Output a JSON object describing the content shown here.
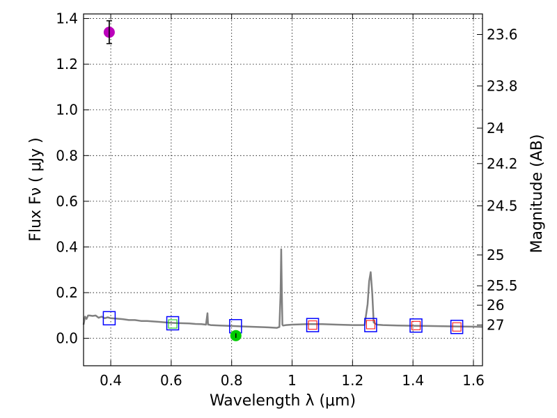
{
  "chart_data": {
    "type": "scatter",
    "title": "",
    "xlabel": "Wavelength  λ (μm)",
    "ylabel": "Flux  Fν  ( μJy )",
    "ylabel_right": "Magnitude (AB)",
    "xlim": [
      0.31,
      1.63
    ],
    "ylim": [
      -0.12,
      1.42
    ],
    "grid": true,
    "x_ticks": [
      0.4,
      0.6,
      0.8,
      1.0,
      1.2,
      1.4,
      1.6
    ],
    "x_tick_labels": [
      "0.4",
      "0.6",
      "0.8",
      "1",
      "1.2",
      "1.4",
      "1.6"
    ],
    "y_ticks": [
      0.0,
      0.2,
      0.4,
      0.6,
      0.8,
      1.0,
      1.2,
      1.4
    ],
    "y_tick_labels": [
      "0.0",
      "0.2",
      "0.4",
      "0.6",
      "0.8",
      "1.0",
      "1.2",
      "1.4"
    ],
    "right_axis_ticks": [
      {
        "label": "23.6",
        "flux": 1.33
      },
      {
        "label": "23.8",
        "flux": 1.105
      },
      {
        "label": "24",
        "flux": 0.92
      },
      {
        "label": "24.2",
        "flux": 0.765
      },
      {
        "label": "24.5",
        "flux": 0.58
      },
      {
        "label": "25",
        "flux": 0.365
      },
      {
        "label": "25.5",
        "flux": 0.23
      },
      {
        "label": "26",
        "flux": 0.145
      },
      {
        "label": "27",
        "flux": 0.058
      }
    ],
    "series": [
      {
        "name": "Model SED",
        "kind": "line",
        "color": "#808080",
        "x": [
          0.31,
          0.315,
          0.32,
          0.325,
          0.33,
          0.34,
          0.35,
          0.36,
          0.37,
          0.38,
          0.39,
          0.4,
          0.42,
          0.44,
          0.46,
          0.48,
          0.5,
          0.52,
          0.54,
          0.56,
          0.58,
          0.6,
          0.62,
          0.64,
          0.66,
          0.68,
          0.7,
          0.715,
          0.72,
          0.722,
          0.725,
          0.73,
          0.76,
          0.8,
          0.84,
          0.88,
          0.92,
          0.95,
          0.958,
          0.962,
          0.964,
          0.966,
          0.968,
          0.97,
          0.98,
          1.0,
          1.05,
          1.1,
          1.15,
          1.2,
          1.24,
          1.25,
          1.255,
          1.26,
          1.265,
          1.27,
          1.28,
          1.3,
          1.35,
          1.4,
          1.45,
          1.5,
          1.55,
          1.6,
          1.63
        ],
        "y": [
          0.06,
          0.095,
          0.085,
          0.1,
          0.1,
          0.098,
          0.1,
          0.09,
          0.095,
          0.088,
          0.092,
          0.088,
          0.086,
          0.084,
          0.08,
          0.08,
          0.076,
          0.076,
          0.074,
          0.072,
          0.07,
          0.068,
          0.067,
          0.066,
          0.065,
          0.063,
          0.062,
          0.06,
          0.11,
          0.06,
          0.06,
          0.058,
          0.056,
          0.054,
          0.052,
          0.05,
          0.048,
          0.046,
          0.05,
          0.2,
          0.39,
          0.2,
          0.06,
          0.056,
          0.058,
          0.06,
          0.062,
          0.062,
          0.06,
          0.058,
          0.058,
          0.15,
          0.25,
          0.29,
          0.2,
          0.07,
          0.06,
          0.058,
          0.056,
          0.055,
          0.054,
          0.053,
          0.052,
          0.051,
          0.05
        ]
      },
      {
        "name": "Model photometry (blue squares)",
        "kind": "square",
        "color": "#0000ff",
        "x": [
          0.395,
          0.605,
          0.813,
          1.068,
          1.26,
          1.41,
          1.545
        ],
        "y": [
          0.088,
          0.066,
          0.053,
          0.058,
          0.058,
          0.056,
          0.05
        ]
      },
      {
        "name": "Observed upper limits (red squares)",
        "kind": "small-square",
        "color": "#ff0000",
        "x": [
          1.068,
          1.26,
          1.41,
          1.545
        ],
        "y": [
          0.058,
          0.06,
          0.056,
          0.05
        ]
      },
      {
        "name": "Observed (green square)",
        "kind": "small-square",
        "color": "#00cc00",
        "x": [
          0.605
        ],
        "y": [
          0.063
        ]
      },
      {
        "name": "Detection (green)",
        "kind": "circle",
        "color": "#00cc00",
        "x": [
          0.814
        ],
        "y": [
          0.012
        ],
        "yerr": [
          0.01
        ]
      },
      {
        "name": "Detection (magenta)",
        "kind": "circle",
        "color": "#bb00bb",
        "x": [
          0.395
        ],
        "y": [
          1.34
        ],
        "yerr": [
          0.05
        ]
      }
    ]
  }
}
